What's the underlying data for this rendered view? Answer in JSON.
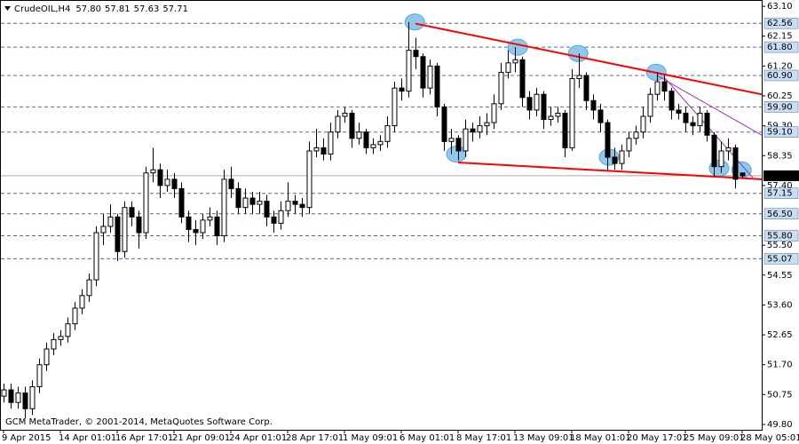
{
  "chart_data": {
    "type": "candlestick",
    "symbol": "CrudeOIL,H4",
    "quote": [
      "57.80",
      "57.81",
      "57.63",
      "57.71"
    ],
    "footer": "GCM MetaTrader, © 2001-2014, MetaQuotes Software Corp.",
    "categories": [
      "9 Apr 2015",
      null,
      null,
      null,
      null,
      null,
      null,
      null,
      "14 Apr 01:01",
      null,
      null,
      null,
      null,
      null,
      null,
      null,
      "16 Apr 17:01",
      null,
      null,
      null,
      null,
      null,
      null,
      null,
      "21 Apr 09:01",
      null,
      null,
      null,
      null,
      null,
      null,
      null,
      "24 Apr 01:01",
      null,
      null,
      null,
      null,
      null,
      null,
      null,
      "28 Apr 17:01",
      null,
      null,
      null,
      null,
      null,
      null,
      null,
      "1 May 09:01",
      null,
      null,
      null,
      null,
      null,
      null,
      null,
      "6 May 01:01",
      null,
      null,
      null,
      null,
      null,
      null,
      null,
      "8 May 17:01",
      null,
      null,
      null,
      null,
      null,
      null,
      null,
      "13 May 09:01",
      null,
      null,
      null,
      null,
      null,
      null,
      null,
      "18 May 01:01",
      null,
      null,
      null,
      null,
      null,
      null,
      null,
      "20 May 17:01",
      null,
      null,
      null,
      null,
      null,
      null,
      null,
      "25 May 09:01",
      null,
      null,
      null,
      null,
      null,
      null,
      null,
      "28 May 05:01"
    ],
    "open": [
      50.7,
      50.9,
      50.5,
      50.8,
      50.3,
      51.0,
      51.7,
      52.2,
      52.5,
      52.6,
      53.0,
      53.5,
      53.9,
      54.4,
      55.9,
      56.1,
      56.4,
      55.3,
      56.7,
      56.4,
      55.9,
      57.8,
      57.9,
      57.4,
      57.6,
      57.3,
      56.4,
      56.0,
      55.9,
      56.3,
      56.4,
      55.8,
      57.6,
      57.3,
      56.7,
      57.0,
      56.8,
      56.9,
      56.4,
      56.2,
      56.6,
      56.9,
      56.8,
      56.7,
      58.5,
      58.6,
      58.4,
      59.1,
      59.6,
      59.7,
      58.9,
      59.1,
      58.6,
      58.7,
      58.8,
      59.3,
      60.5,
      60.4,
      61.7,
      61.5,
      60.5,
      61.2,
      59.9,
      58.8,
      58.9,
      58.5,
      59.2,
      59.1,
      59.3,
      59.4,
      60.0,
      61.0,
      61.3,
      61.4,
      60.2,
      59.8,
      60.3,
      59.5,
      59.6,
      59.7,
      58.6,
      60.8,
      60.9,
      60.1,
      59.8,
      59.4,
      58.3,
      58.1,
      58.5,
      58.9,
      59.1,
      59.6,
      60.3,
      60.7,
      60.4,
      59.8,
      59.7,
      59.4,
      59.3,
      59.7,
      59.0,
      58.0,
      58.5,
      58.6,
      57.8
    ],
    "high": [
      51.1,
      51.1,
      51.0,
      51.0,
      51.2,
      51.9,
      52.4,
      52.7,
      52.8,
      53.2,
      53.7,
      54.1,
      54.6,
      56.1,
      56.5,
      56.8,
      56.5,
      56.9,
      56.9,
      56.6,
      58.0,
      58.6,
      58.1,
      57.9,
      57.8,
      57.5,
      56.6,
      56.3,
      56.5,
      56.7,
      56.6,
      57.9,
      58.0,
      57.5,
      57.3,
      57.2,
      57.2,
      57.1,
      56.6,
      56.9,
      57.5,
      57.1,
      57.0,
      58.8,
      59.2,
      58.9,
      59.4,
      59.8,
      59.9,
      59.8,
      59.4,
      59.2,
      58.9,
      59.0,
      59.6,
      60.7,
      60.8,
      62.6,
      62.1,
      61.6,
      61.4,
      61.3,
      60.0,
      59.2,
      59.0,
      59.5,
      59.4,
      59.6,
      59.7,
      60.3,
      61.3,
      61.7,
      61.8,
      61.5,
      60.4,
      60.5,
      60.4,
      59.9,
      59.9,
      59.8,
      61.1,
      61.6,
      61.0,
      60.3,
      60.0,
      59.5,
      58.6,
      58.7,
      59.1,
      59.3,
      59.9,
      60.5,
      61.0,
      60.9,
      60.5,
      60.0,
      59.9,
      59.6,
      59.9,
      59.8,
      59.1,
      58.8,
      58.9,
      58.7,
      57.81
    ],
    "low": [
      50.5,
      50.3,
      50.3,
      50.0,
      50.1,
      50.8,
      51.5,
      52.0,
      52.3,
      52.4,
      52.8,
      53.3,
      53.7,
      54.2,
      55.5,
      55.9,
      55.0,
      55.1,
      56.1,
      55.4,
      55.7,
      57.5,
      57.0,
      57.2,
      57.0,
      56.2,
      55.6,
      55.5,
      55.7,
      56.1,
      55.5,
      55.6,
      57.0,
      56.5,
      56.5,
      56.5,
      56.5,
      56.1,
      55.9,
      56.0,
      56.4,
      56.5,
      56.4,
      56.5,
      58.3,
      58.2,
      58.2,
      58.9,
      59.4,
      58.6,
      58.7,
      58.4,
      58.4,
      58.5,
      58.6,
      59.1,
      60.1,
      60.2,
      61.1,
      60.2,
      60.3,
      59.6,
      58.5,
      58.4,
      58.2,
      58.3,
      58.8,
      58.9,
      59.0,
      59.2,
      59.8,
      60.8,
      61.0,
      59.9,
      59.5,
      59.6,
      59.2,
      59.3,
      59.4,
      58.3,
      58.5,
      60.5,
      59.8,
      59.5,
      59.1,
      57.9,
      57.9,
      57.9,
      58.3,
      58.7,
      58.9,
      59.4,
      60.1,
      60.1,
      59.5,
      59.5,
      59.1,
      59.0,
      59.1,
      58.8,
      57.7,
      57.8,
      58.2,
      57.3,
      57.63
    ],
    "close": [
      50.9,
      50.5,
      50.8,
      50.3,
      51.0,
      51.7,
      52.2,
      52.5,
      52.6,
      53.0,
      53.5,
      53.9,
      54.4,
      55.9,
      56.1,
      56.4,
      55.3,
      56.7,
      56.4,
      55.9,
      57.8,
      57.9,
      57.4,
      57.6,
      57.3,
      56.4,
      56.0,
      55.9,
      56.3,
      56.4,
      55.8,
      57.6,
      57.3,
      56.7,
      57.0,
      56.8,
      56.9,
      56.4,
      56.2,
      56.6,
      56.9,
      56.8,
      56.7,
      58.5,
      58.6,
      58.4,
      59.1,
      59.6,
      59.7,
      58.9,
      59.1,
      58.6,
      58.7,
      58.8,
      59.3,
      60.5,
      60.4,
      61.7,
      61.5,
      60.5,
      61.2,
      59.9,
      58.8,
      58.9,
      58.5,
      59.2,
      59.1,
      59.3,
      59.4,
      60.0,
      61.0,
      61.3,
      61.4,
      60.2,
      59.8,
      60.3,
      59.5,
      59.6,
      59.7,
      58.6,
      60.8,
      60.9,
      60.1,
      59.8,
      59.4,
      58.3,
      58.1,
      58.5,
      58.9,
      59.1,
      59.6,
      60.3,
      60.7,
      60.4,
      59.8,
      59.7,
      59.4,
      59.3,
      59.7,
      59.0,
      58.0,
      58.5,
      58.6,
      57.6,
      57.71
    ],
    "ylim": [
      49.63,
      63.3
    ],
    "yticks": [
      {
        "value": 63.1,
        "label": "63.10"
      },
      62.15,
      {
        "value": 61.2,
        "label": "61.20"
      },
      60.25,
      {
        "value": 59.3,
        "label": "59.30"
      },
      58.35,
      {
        "value": 57.4,
        "label": "57.40"
      },
      {
        "value": 55.5,
        "label": "55.50"
      },
      54.55,
      {
        "value": 53.6,
        "label": "53.60"
      },
      52.65,
      {
        "value": 51.7,
        "label": "51.70"
      },
      50.75,
      {
        "value": 49.8,
        "label": "49.80"
      }
    ],
    "levels": [
      62.56,
      {
        "value": 61.8,
        "label": "61.80"
      },
      {
        "value": 60.9,
        "label": "60.90"
      },
      {
        "value": 59.9,
        "label": "59.90"
      },
      {
        "value": 59.1,
        "label": "59.10"
      },
      57.15,
      {
        "value": 56.5,
        "label": "56.50"
      },
      {
        "value": 55.8,
        "label": "55.80"
      },
      55.07
    ],
    "current_price": 57.71,
    "trendlines": [
      {
        "color": "#ff0000",
        "points": [
          [
            58,
            62.55
          ],
          [
            106.75,
            60.3
          ]
        ]
      },
      {
        "color": "#ff0000",
        "points": [
          [
            64,
            58.13
          ],
          [
            106.75,
            57.6
          ]
        ]
      },
      {
        "color": "#9b30b0",
        "points": [
          [
            92,
            60.9
          ],
          [
            106.75,
            59.0
          ]
        ]
      },
      {
        "color": "#9b30b0",
        "points": [
          [
            93,
            60.85
          ],
          [
            105.5,
            57.65
          ]
        ]
      }
    ],
    "markers": [
      [
        57.9,
        62.6
      ],
      [
        72.4,
        61.8
      ],
      [
        80.9,
        61.6
      ],
      [
        91.9,
        61.0
      ],
      [
        63.75,
        58.4
      ],
      [
        85.25,
        58.3
      ],
      [
        100.75,
        57.95
      ],
      [
        103.9,
        57.9
      ]
    ],
    "marker_color": "#8fc8ec"
  }
}
